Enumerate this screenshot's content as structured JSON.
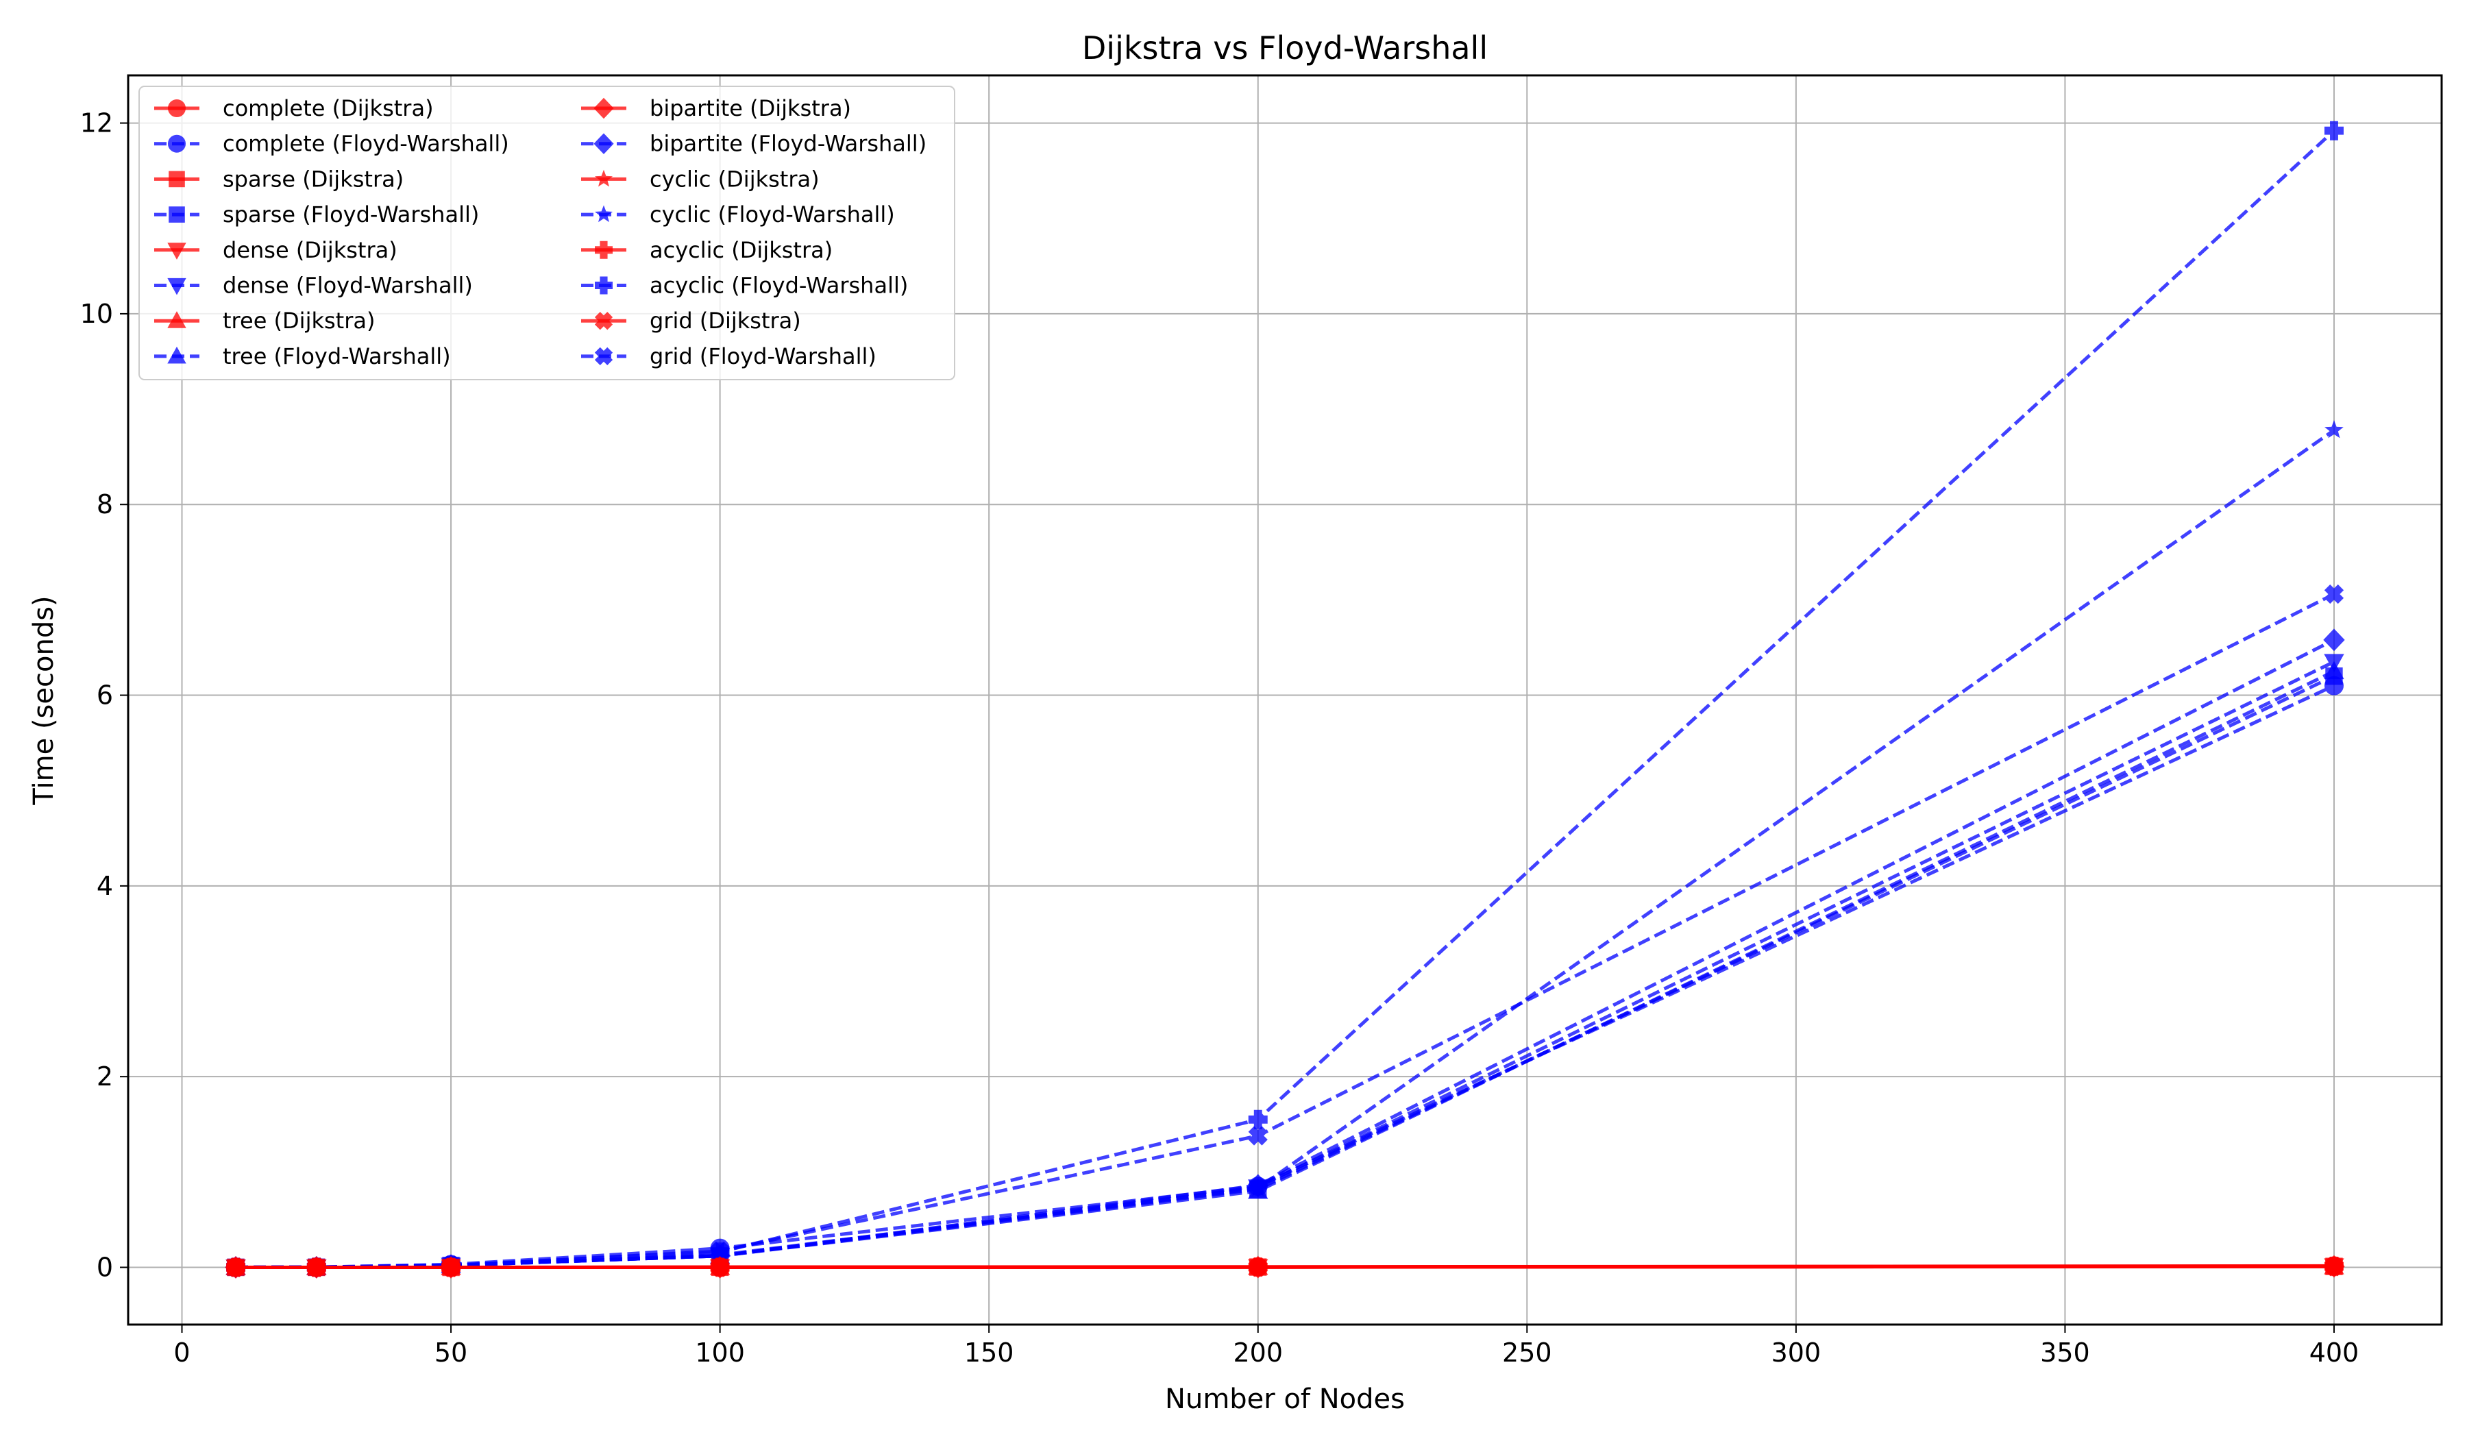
{
  "chart_data": {
    "type": "line",
    "title": "Dijkstra vs Floyd-Warshall",
    "xlabel": "Number of Nodes",
    "ylabel": "Time (seconds)",
    "xlim": [
      -10,
      420
    ],
    "ylim": [
      -0.6,
      12.5
    ],
    "xticks": [
      0,
      50,
      100,
      150,
      200,
      250,
      300,
      350,
      400
    ],
    "yticks": [
      0,
      2,
      4,
      6,
      8,
      10,
      12
    ],
    "grid": true,
    "legend_position": "top-left",
    "legend_columns": 2,
    "colors": {
      "dijkstra": "#ff0000",
      "floyd_warshall": "#0000ff"
    },
    "x": [
      10,
      25,
      50,
      100,
      200,
      400
    ],
    "series": [
      {
        "name": "complete (Dijkstra)",
        "algo": "dijkstra",
        "marker": "circle",
        "values": [
          0,
          0,
          0,
          0.002,
          0.005,
          0.015
        ]
      },
      {
        "name": "complete (Floyd-Warshall)",
        "algo": "floyd_warshall",
        "marker": "circle",
        "values": [
          0.001,
          0.002,
          0.03,
          0.2,
          0.85,
          6.1
        ]
      },
      {
        "name": "sparse (Dijkstra)",
        "algo": "dijkstra",
        "marker": "square",
        "values": [
          0,
          0,
          0,
          0.001,
          0.003,
          0.01
        ]
      },
      {
        "name": "sparse (Floyd-Warshall)",
        "algo": "floyd_warshall",
        "marker": "square",
        "values": [
          0.001,
          0.002,
          0.02,
          0.12,
          0.82,
          6.2
        ]
      },
      {
        "name": "dense (Dijkstra)",
        "algo": "dijkstra",
        "marker": "triangle-down",
        "values": [
          0,
          0,
          0,
          0.002,
          0.004,
          0.012
        ]
      },
      {
        "name": "dense (Floyd-Warshall)",
        "algo": "floyd_warshall",
        "marker": "triangle-down",
        "values": [
          0.001,
          0.002,
          0.02,
          0.12,
          0.84,
          6.35
        ]
      },
      {
        "name": "tree (Dijkstra)",
        "algo": "dijkstra",
        "marker": "triangle-up",
        "values": [
          0,
          0,
          0,
          0.001,
          0.002,
          0.008
        ]
      },
      {
        "name": "tree (Floyd-Warshall)",
        "algo": "floyd_warshall",
        "marker": "triangle-up",
        "values": [
          0.001,
          0.002,
          0.02,
          0.12,
          0.8,
          6.25
        ]
      },
      {
        "name": "bipartite (Dijkstra)",
        "algo": "dijkstra",
        "marker": "diamond",
        "values": [
          0,
          0,
          0,
          0.001,
          0.003,
          0.01
        ]
      },
      {
        "name": "bipartite (Floyd-Warshall)",
        "algo": "floyd_warshall",
        "marker": "diamond",
        "values": [
          0.001,
          0.002,
          0.02,
          0.12,
          0.86,
          6.58
        ]
      },
      {
        "name": "cyclic (Dijkstra)",
        "algo": "dijkstra",
        "marker": "star",
        "values": [
          0,
          0,
          0,
          0.001,
          0.003,
          0.01
        ]
      },
      {
        "name": "cyclic (Floyd-Warshall)",
        "algo": "floyd_warshall",
        "marker": "star",
        "values": [
          0.001,
          0.002,
          0.02,
          0.13,
          0.83,
          8.78
        ]
      },
      {
        "name": "acyclic (Dijkstra)",
        "algo": "dijkstra",
        "marker": "plus",
        "values": [
          0,
          0,
          0,
          0.001,
          0.003,
          0.01
        ]
      },
      {
        "name": "acyclic (Floyd-Warshall)",
        "algo": "floyd_warshall",
        "marker": "plus",
        "values": [
          0.001,
          0.002,
          0.02,
          0.16,
          1.55,
          11.92
        ]
      },
      {
        "name": "grid (Dijkstra)",
        "algo": "dijkstra",
        "marker": "x",
        "values": [
          0,
          0,
          0,
          0.001,
          0.003,
          0.012
        ]
      },
      {
        "name": "grid (Floyd-Warshall)",
        "algo": "floyd_warshall",
        "marker": "x",
        "values": [
          0.001,
          0.002,
          0.02,
          0.17,
          1.38,
          7.06
        ]
      }
    ]
  }
}
